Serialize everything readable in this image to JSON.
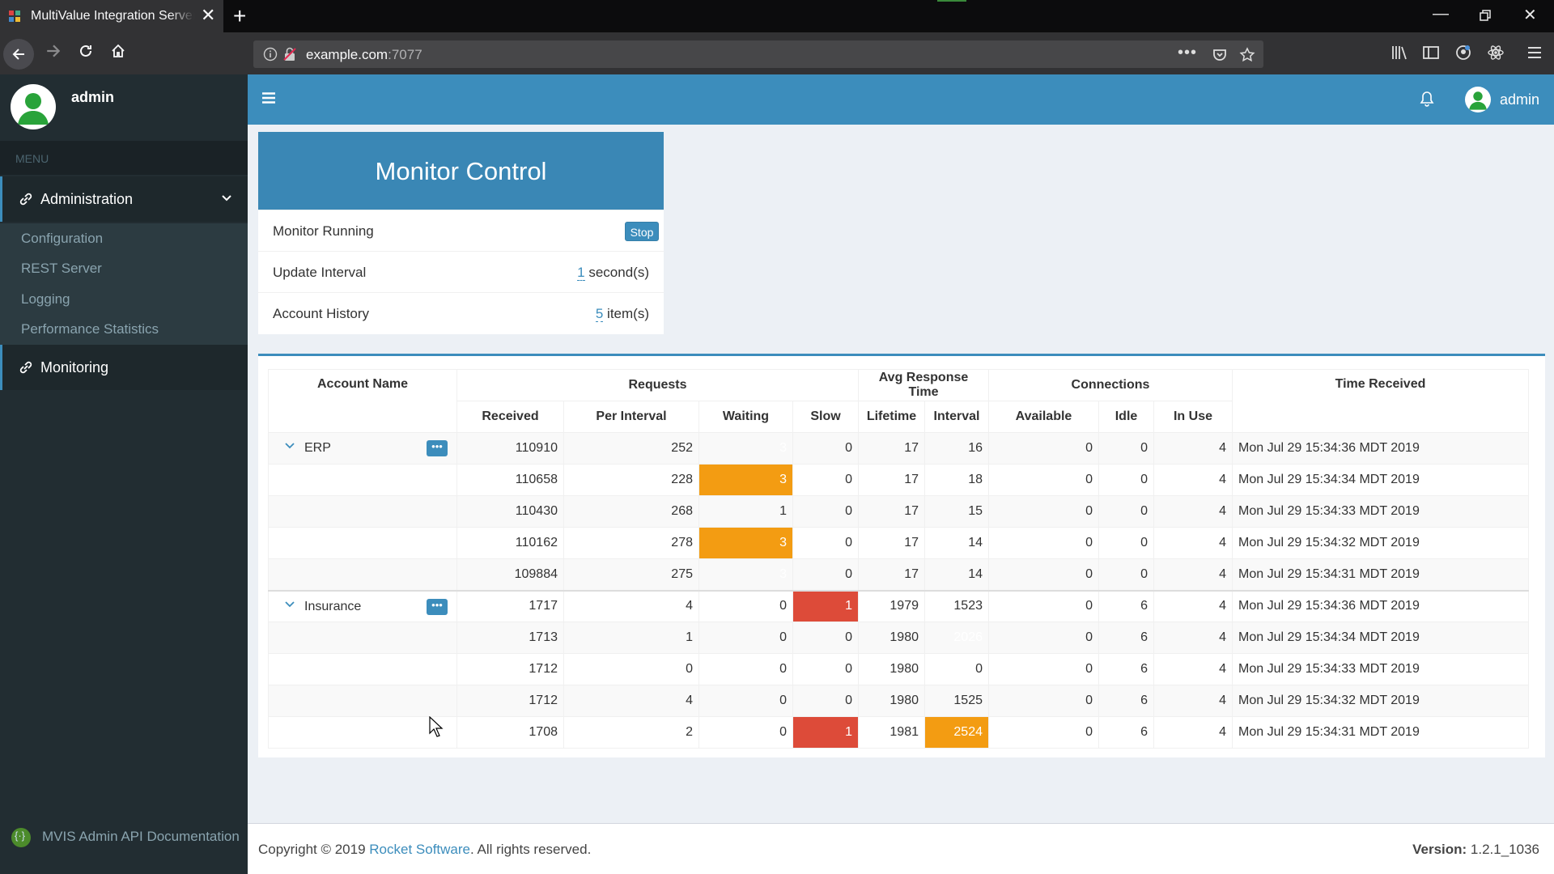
{
  "browser": {
    "tab_title": "MultiValue Integration Server Admin",
    "url_host": "example.com",
    "url_port": ":7077"
  },
  "sidebar": {
    "user": "admin",
    "menu_header": "MENU",
    "items": [
      {
        "label": "Administration"
      },
      {
        "label": "Monitoring"
      }
    ],
    "subitems": [
      "Configuration",
      "REST Server",
      "Logging",
      "Performance Statistics"
    ],
    "footer_link": "MVIS Admin API Documentation"
  },
  "topbar": {
    "user": "admin"
  },
  "monitor": {
    "title": "Monitor Control",
    "running_label": "Monitor Running",
    "stop_label": "Stop",
    "interval_label": "Update Interval",
    "interval_value": "1",
    "interval_unit": " second(s)",
    "history_label": "Account History",
    "history_value": "5",
    "history_unit": " item(s)"
  },
  "table": {
    "headers": {
      "account": "Account Name",
      "requests": "Requests",
      "avg": "Avg Response Time",
      "connections": "Connections",
      "time": "Time Received",
      "received": "Received",
      "per_interval": "Per Interval",
      "waiting": "Waiting",
      "slow": "Slow",
      "lifetime": "Lifetime",
      "interval": "Interval",
      "available": "Available",
      "idle": "Idle",
      "in_use": "In Use"
    },
    "groups": [
      {
        "name": "ERP",
        "rows": [
          {
            "received": "110910",
            "per_interval": "252",
            "waiting": "3",
            "slow": "0",
            "lifetime": "17",
            "interval": "16",
            "available": "0",
            "idle": "0",
            "in_use": "4",
            "time": "Mon Jul 29 15:34:36 MDT 2019",
            "waiting_hi": true
          },
          {
            "received": "110658",
            "per_interval": "228",
            "waiting": "3",
            "slow": "0",
            "lifetime": "17",
            "interval": "18",
            "available": "0",
            "idle": "0",
            "in_use": "4",
            "time": "Mon Jul 29 15:34:34 MDT 2019",
            "waiting_hi": true
          },
          {
            "received": "110430",
            "per_interval": "268",
            "waiting": "1",
            "slow": "0",
            "lifetime": "17",
            "interval": "15",
            "available": "0",
            "idle": "0",
            "in_use": "4",
            "time": "Mon Jul 29 15:34:33 MDT 2019"
          },
          {
            "received": "110162",
            "per_interval": "278",
            "waiting": "3",
            "slow": "0",
            "lifetime": "17",
            "interval": "14",
            "available": "0",
            "idle": "0",
            "in_use": "4",
            "time": "Mon Jul 29 15:34:32 MDT 2019",
            "waiting_hi": true
          },
          {
            "received": "109884",
            "per_interval": "275",
            "waiting": "3",
            "slow": "0",
            "lifetime": "17",
            "interval": "14",
            "available": "0",
            "idle": "0",
            "in_use": "4",
            "time": "Mon Jul 29 15:34:31 MDT 2019",
            "waiting_hi": true
          }
        ]
      },
      {
        "name": "Insurance",
        "rows": [
          {
            "received": "1717",
            "per_interval": "4",
            "waiting": "0",
            "slow": "1",
            "lifetime": "1979",
            "interval": "1523",
            "available": "0",
            "idle": "6",
            "in_use": "4",
            "time": "Mon Jul 29 15:34:36 MDT 2019",
            "slow_hi": true
          },
          {
            "received": "1713",
            "per_interval": "1",
            "waiting": "0",
            "slow": "0",
            "lifetime": "1980",
            "interval": "2026",
            "available": "0",
            "idle": "6",
            "in_use": "4",
            "time": "Mon Jul 29 15:34:34 MDT 2019",
            "interval_hi": true
          },
          {
            "received": "1712",
            "per_interval": "0",
            "waiting": "0",
            "slow": "0",
            "lifetime": "1980",
            "interval": "0",
            "available": "0",
            "idle": "6",
            "in_use": "4",
            "time": "Mon Jul 29 15:34:33 MDT 2019"
          },
          {
            "received": "1712",
            "per_interval": "4",
            "waiting": "0",
            "slow": "0",
            "lifetime": "1980",
            "interval": "1525",
            "available": "0",
            "idle": "6",
            "in_use": "4",
            "time": "Mon Jul 29 15:34:32 MDT 2019"
          },
          {
            "received": "1708",
            "per_interval": "2",
            "waiting": "0",
            "slow": "1",
            "lifetime": "1981",
            "interval": "2524",
            "available": "0",
            "idle": "6",
            "in_use": "4",
            "time": "Mon Jul 29 15:34:31 MDT 2019",
            "slow_hi": true,
            "interval_hi": true
          }
        ]
      }
    ]
  },
  "footer": {
    "copyright_prefix": "Copyright © 2019 ",
    "company": "Rocket Software",
    "copyright_suffix": ". All rights reserved.",
    "version_label": "Version:",
    "version_value": " 1.2.1_1036"
  },
  "colors": {
    "primary": "#3c8dbc",
    "sidebar": "#222d32",
    "warning": "#f39c12",
    "danger": "#dd4b39"
  }
}
